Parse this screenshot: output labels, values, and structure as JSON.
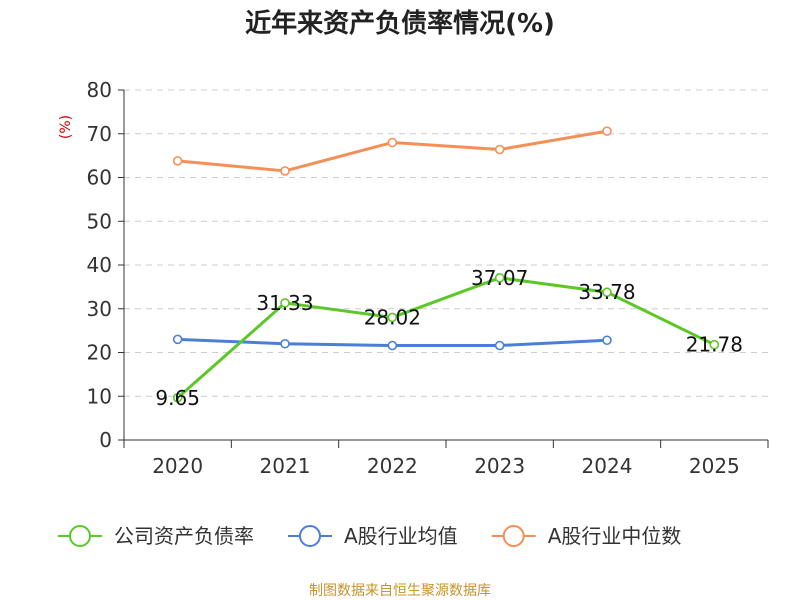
{
  "chart_data": {
    "type": "line",
    "title": "近年来资产负债率情况(%)",
    "ylabel": "(%)",
    "xlabel": "",
    "ylim": [
      0,
      80
    ],
    "yticks": [
      "0",
      "10",
      "20",
      "30",
      "40",
      "50",
      "60",
      "70",
      "80"
    ],
    "categories": [
      "2020",
      "2021",
      "2022",
      "2023",
      "2024",
      "2025"
    ],
    "grid": true,
    "legend_position": "bottom",
    "series": [
      {
        "name": "公司资产负债率",
        "color": "#5cc827",
        "values": [
          9.65,
          31.33,
          28.02,
          37.07,
          33.78,
          21.78
        ],
        "labels": [
          "9.65",
          "31.33",
          "28.02",
          "37.07",
          "33.78",
          "21.78"
        ]
      },
      {
        "name": "A股行业均值",
        "color": "#4a7fd8",
        "values": [
          23.0,
          22.0,
          21.6,
          21.6,
          22.8,
          null
        ]
      },
      {
        "name": "A股行业中位数",
        "color": "#f58f57",
        "values": [
          63.8,
          61.5,
          68.0,
          66.4,
          70.6,
          null
        ]
      }
    ]
  },
  "source": "制图数据来自恒生聚源数据库"
}
